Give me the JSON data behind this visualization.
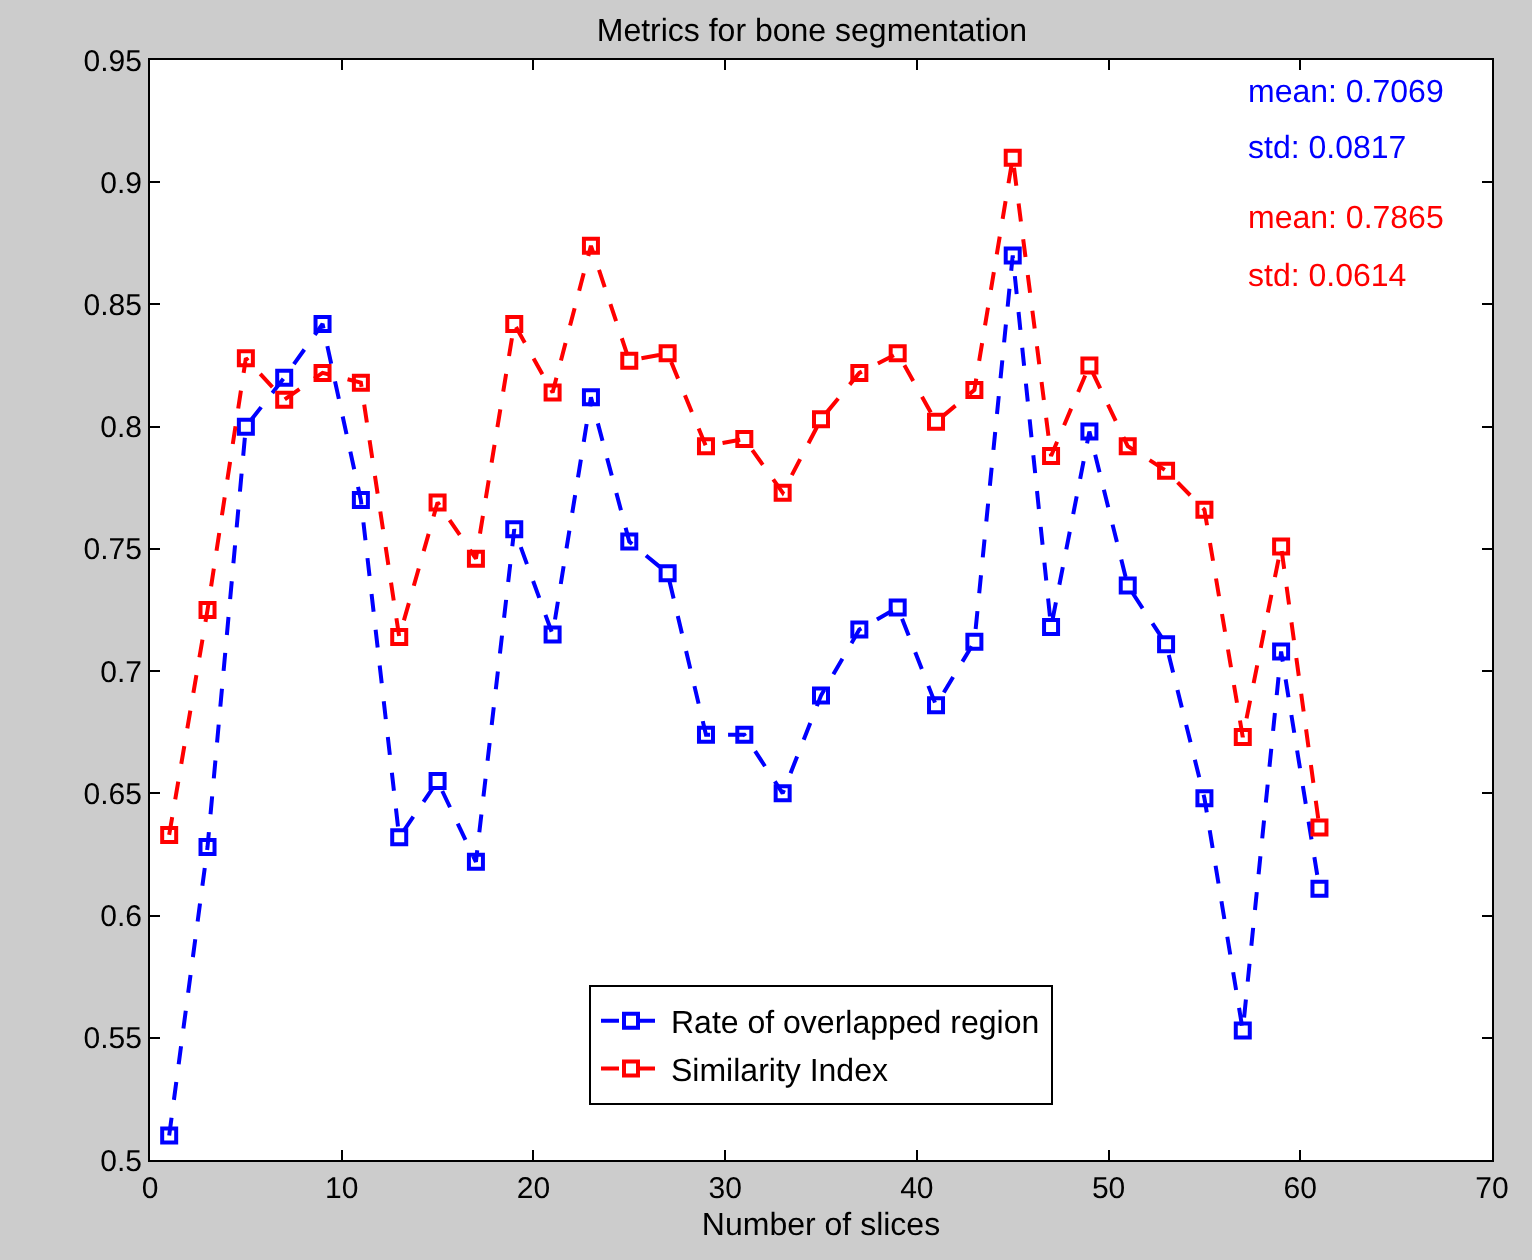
{
  "chart_data": {
    "type": "line",
    "title": "Metrics for bone segmentation",
    "xlabel": "Number of slices",
    "x": [
      1,
      3,
      5,
      7,
      9,
      11,
      13,
      15,
      17,
      19,
      21,
      23,
      25,
      27,
      29,
      31,
      33,
      35,
      37,
      39,
      41,
      43,
      45,
      47,
      49,
      51,
      53,
      55,
      57,
      59,
      61
    ],
    "series": [
      {
        "name": "Rate of overlapped region",
        "color": "#0000ff",
        "values": [
          0.51,
          0.628,
          0.8,
          0.82,
          0.842,
          0.77,
          0.632,
          0.655,
          0.622,
          0.758,
          0.715,
          0.812,
          0.753,
          0.74,
          0.674,
          0.674,
          0.65,
          0.69,
          0.717,
          0.726,
          0.686,
          0.712,
          0.87,
          0.718,
          0.798,
          0.735,
          0.711,
          0.648,
          0.553,
          0.708,
          0.611
        ]
      },
      {
        "name": "Similarity Index",
        "color": "#ff0000",
        "values": [
          0.633,
          0.725,
          0.828,
          0.811,
          0.822,
          0.818,
          0.714,
          0.769,
          0.746,
          0.842,
          0.814,
          0.874,
          0.827,
          0.83,
          0.792,
          0.795,
          0.773,
          0.803,
          0.822,
          0.83,
          0.802,
          0.815,
          0.91,
          0.788,
          0.825,
          0.792,
          0.782,
          0.766,
          0.673,
          0.751,
          0.636
        ]
      }
    ],
    "annotations": [
      "mean: 0.7069",
      "std: 0.0817",
      "mean: 0.7865",
      "std: 0.0614"
    ],
    "xlim": [
      0,
      70
    ],
    "xticks": [
      0,
      10,
      20,
      30,
      40,
      50,
      60,
      70
    ],
    "ylim": [
      0.5,
      0.95
    ],
    "yticks": [
      0.5,
      0.55,
      0.6,
      0.65,
      0.7,
      0.75,
      0.8,
      0.85,
      0.9,
      0.95
    ],
    "grid": false,
    "legend": "bottom",
    "marker": "square",
    "line_style": "dashed"
  }
}
